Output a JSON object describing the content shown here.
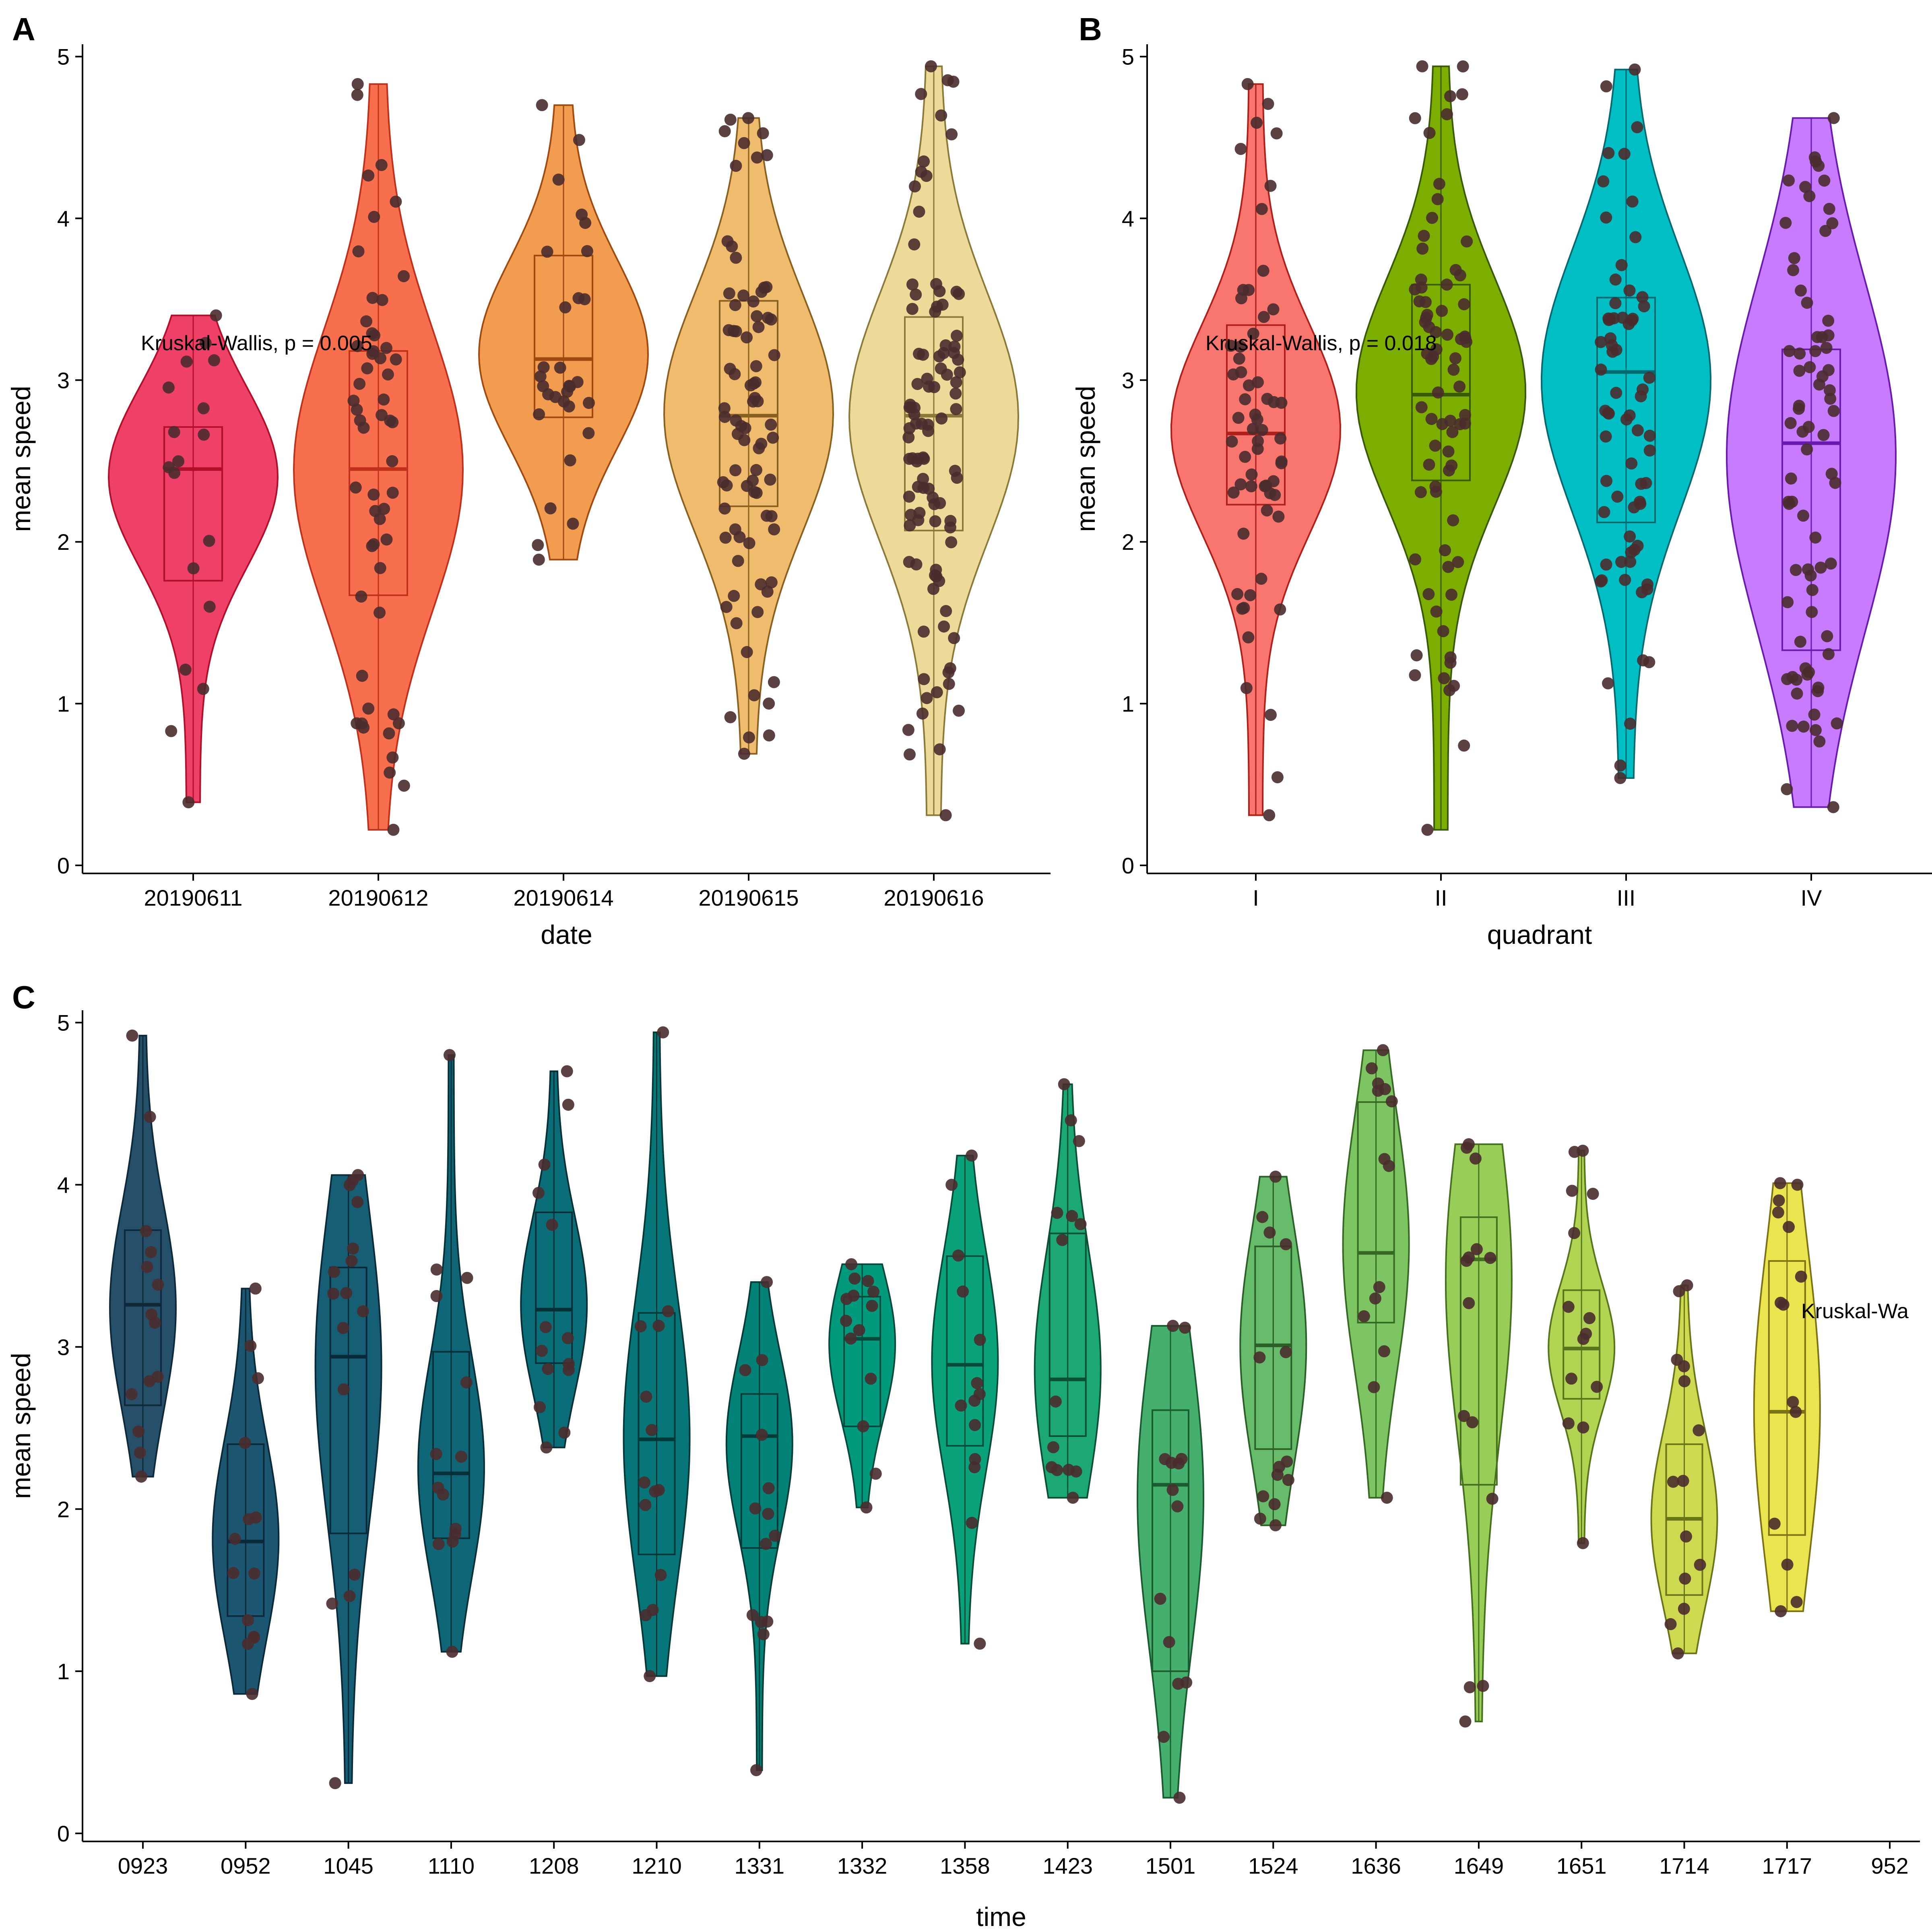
{
  "chart_data": [
    {
      "panel": "A",
      "type": "violin",
      "xlabel": "date",
      "ylabel": "mean speed",
      "ylim": [
        0,
        5
      ],
      "yticks": [
        "0",
        "1",
        "2",
        "3",
        "4",
        "5"
      ],
      "annotation": "Kruskal-Wallis, p = 0.005",
      "groups": [
        {
          "name": "20190611",
          "fill": "#EF4068",
          "edge": "#B0102A",
          "min": 0.39,
          "max": 3.4,
          "q1": 1.76,
          "median": 2.45,
          "q3": 2.71,
          "n": 18
        },
        {
          "name": "20190612",
          "fill": "#F86F4E",
          "edge": "#C0301A",
          "min": 0.22,
          "max": 4.83,
          "q1": 1.67,
          "median": 2.45,
          "q3": 3.18,
          "n": 55
        },
        {
          "name": "20190614",
          "fill": "#F29C50",
          "edge": "#A04A10",
          "min": 1.89,
          "max": 4.7,
          "q1": 2.77,
          "median": 3.13,
          "q3": 3.77,
          "n": 30
        },
        {
          "name": "20190615",
          "fill": "#EFBC6D",
          "edge": "#8A6020",
          "min": 0.69,
          "max": 4.62,
          "q1": 2.22,
          "median": 2.78,
          "q3": 3.49,
          "n": 80
        },
        {
          "name": "20190616",
          "fill": "#EDD998",
          "edge": "#8A7A3A",
          "min": 0.31,
          "max": 4.94,
          "q1": 2.07,
          "median": 2.78,
          "q3": 3.39,
          "n": 100
        }
      ]
    },
    {
      "panel": "B",
      "type": "violin",
      "xlabel": "quadrant",
      "ylabel": "mean speed",
      "ylim": [
        0,
        5
      ],
      "yticks": [
        "0",
        "1",
        "2",
        "3",
        "4",
        "5"
      ],
      "annotation": "Kruskal-Wallis, p = 0.018",
      "groups": [
        {
          "name": "I",
          "fill": "#F8766D",
          "edge": "#B0201A",
          "min": 0.31,
          "max": 4.83,
          "q1": 2.23,
          "median": 2.67,
          "q3": 3.34,
          "n": 60
        },
        {
          "name": "II",
          "fill": "#7CAE00",
          "edge": "#3A5A00",
          "min": 0.22,
          "max": 4.94,
          "q1": 2.38,
          "median": 2.91,
          "q3": 3.59,
          "n": 75
        },
        {
          "name": "III",
          "fill": "#00BFC4",
          "edge": "#006A70",
          "min": 0.54,
          "max": 4.92,
          "q1": 2.12,
          "median": 3.05,
          "q3": 3.51,
          "n": 70
        },
        {
          "name": "IV",
          "fill": "#C77CFF",
          "edge": "#6A1AB0",
          "min": 0.36,
          "max": 4.62,
          "q1": 1.33,
          "median": 2.61,
          "q3": 3.19,
          "n": 75
        }
      ]
    },
    {
      "panel": "C",
      "type": "violin",
      "xlabel": "time",
      "ylabel": "mean speed",
      "ylim": [
        0,
        5
      ],
      "yticks": [
        "0",
        "1",
        "2",
        "3",
        "4",
        "5"
      ],
      "annotation": "Kruskal-Wa",
      "groups": [
        {
          "name": "0923",
          "fill": "#26506A",
          "edge": "#0E2A3A",
          "min": 2.2,
          "max": 4.92,
          "q1": 2.64,
          "median": 3.26,
          "q3": 3.72,
          "n": 14
        },
        {
          "name": "0952",
          "fill": "#1D5670",
          "edge": "#0A2A3A",
          "min": 0.86,
          "max": 3.36,
          "q1": 1.34,
          "median": 1.8,
          "q3": 2.4,
          "n": 14
        },
        {
          "name": "1045",
          "fill": "#155E74",
          "edge": "#0A2A3A",
          "min": 0.31,
          "max": 4.06,
          "q1": 1.85,
          "median": 2.94,
          "q3": 3.49,
          "n": 16
        },
        {
          "name": "1110",
          "fill": "#0F6676",
          "edge": "#063038",
          "min": 1.12,
          "max": 4.8,
          "q1": 1.82,
          "median": 2.22,
          "q3": 2.97,
          "n": 14
        },
        {
          "name": "1208",
          "fill": "#0A6E78",
          "edge": "#063038",
          "min": 2.38,
          "max": 4.7,
          "q1": 2.9,
          "median": 3.23,
          "q3": 3.83,
          "n": 14
        },
        {
          "name": "1210",
          "fill": "#067678",
          "edge": "#033838",
          "min": 0.97,
          "max": 4.94,
          "q1": 1.72,
          "median": 2.43,
          "q3": 3.21,
          "n": 14
        },
        {
          "name": "1331",
          "fill": "#038278",
          "edge": "#013C38",
          "min": 0.39,
          "max": 3.4,
          "q1": 1.76,
          "median": 2.45,
          "q3": 2.71,
          "n": 14
        },
        {
          "name": "1332",
          "fill": "#019A7C",
          "edge": "#014A3C",
          "min": 2.01,
          "max": 3.51,
          "q1": 2.51,
          "median": 3.05,
          "q3": 3.31,
          "n": 14
        },
        {
          "name": "1358",
          "fill": "#09A27A",
          "edge": "#044C38",
          "min": 1.17,
          "max": 4.18,
          "q1": 2.39,
          "median": 2.89,
          "q3": 3.56,
          "n": 14
        },
        {
          "name": "1423",
          "fill": "#1CA874",
          "edge": "#0A5034",
          "min": 2.07,
          "max": 4.62,
          "q1": 2.45,
          "median": 2.8,
          "q3": 3.7,
          "n": 14
        },
        {
          "name": "1501",
          "fill": "#45B06E",
          "edge": "#1A5A30",
          "min": 0.22,
          "max": 3.13,
          "q1": 1.0,
          "median": 2.15,
          "q3": 2.61,
          "n": 14
        },
        {
          "name": "1524",
          "fill": "#66BC6A",
          "edge": "#2A6028",
          "min": 1.9,
          "max": 4.05,
          "q1": 2.37,
          "median": 3.01,
          "q3": 3.62,
          "n": 14
        },
        {
          "name": "1636",
          "fill": "#7CC562",
          "edge": "#366A24",
          "min": 2.07,
          "max": 4.83,
          "q1": 3.15,
          "median": 3.58,
          "q3": 4.51,
          "n": 14
        },
        {
          "name": "1649",
          "fill": "#98CE58",
          "edge": "#46701E",
          "min": 0.69,
          "max": 4.25,
          "q1": 2.15,
          "median": 3.54,
          "q3": 3.8,
          "n": 14
        },
        {
          "name": "1651",
          "fill": "#B1D552",
          "edge": "#56761C",
          "min": 1.79,
          "max": 4.21,
          "q1": 2.68,
          "median": 2.99,
          "q3": 3.35,
          "n": 14
        },
        {
          "name": "1714",
          "fill": "#CDDA50",
          "edge": "#6A7418",
          "min": 1.11,
          "max": 3.38,
          "q1": 1.47,
          "median": 1.94,
          "q3": 2.4,
          "n": 14
        },
        {
          "name": "1717",
          "fill": "#EAE44E",
          "edge": "#7A7214",
          "min": 1.37,
          "max": 4.01,
          "q1": 1.84,
          "median": 2.6,
          "q3": 3.53,
          "n": 14
        },
        {
          "name": "952",
          "fill": "",
          "edge": "",
          "n": 0
        }
      ]
    }
  ],
  "point_color": "#4A2C2E"
}
